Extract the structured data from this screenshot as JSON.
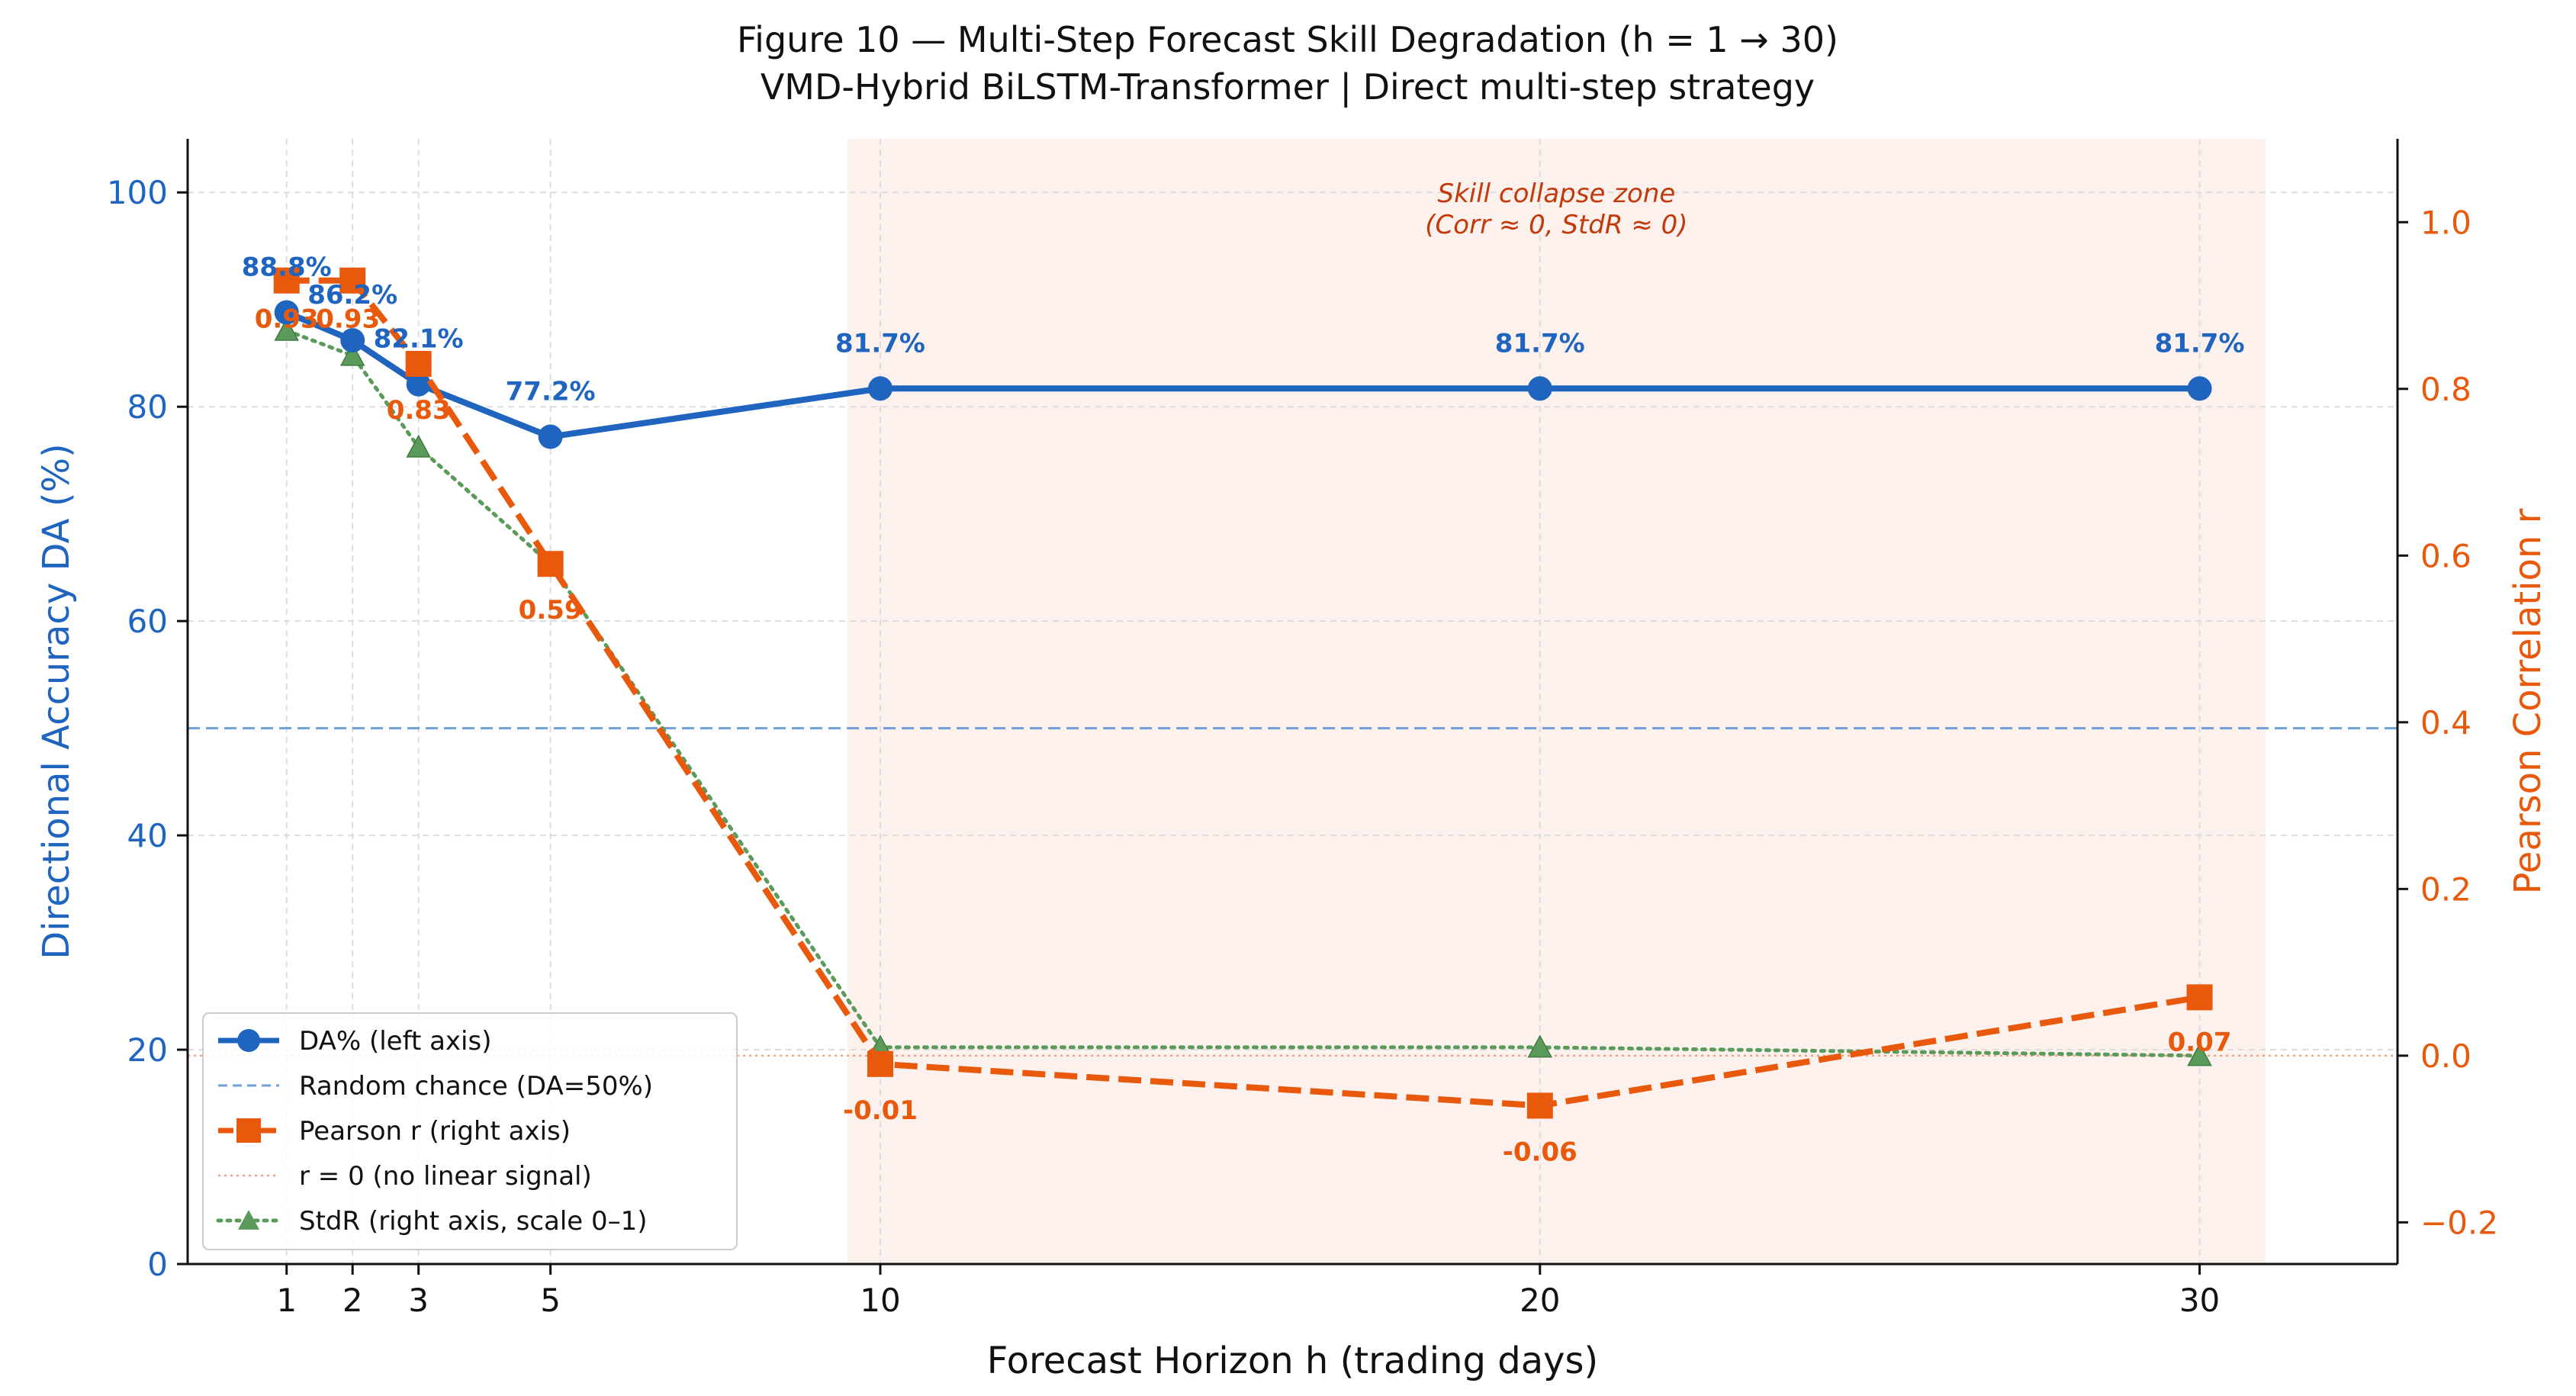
{
  "title": "Figure 10  —  Multi-Step Forecast Skill Degradation  (h = 1 → 30)",
  "subtitle": "VMD-Hybrid BiLSTM-Transformer  |  Direct multi-step strategy",
  "chart_data": {
    "type": "line",
    "title": "Figure 10  —  Multi-Step Forecast Skill Degradation  (h = 1 → 30)",
    "subtitle": "VMD-Hybrid BiLSTM-Transformer  |  Direct multi-step strategy",
    "xlabel": "Forecast Horizon  h  (trading days)",
    "ylabel_left": "Directional Accuracy  DA (%)",
    "ylabel_right": "Pearson Correlation  r",
    "x": [
      1,
      2,
      3,
      5,
      10,
      20,
      30
    ],
    "x_ticks": [
      "1",
      "2",
      "3",
      "5",
      "10",
      "20",
      "30"
    ],
    "xlim": [
      -0.5,
      33.0
    ],
    "ylim_left": [
      0,
      105
    ],
    "ylim_right": [
      -0.25,
      1.1
    ],
    "y_ticks_left": [
      0,
      20,
      40,
      60,
      80,
      100
    ],
    "y_tick_labels_left": [
      "0",
      "20",
      "40",
      "60",
      "80",
      "100"
    ],
    "y_ticks_right": [
      -0.2,
      0.0,
      0.2,
      0.4,
      0.6,
      0.8,
      1.0
    ],
    "y_tick_labels_right": [
      "−0.2",
      "0.0",
      "0.2",
      "0.4",
      "0.6",
      "0.8",
      "1.0"
    ],
    "grid": true,
    "legend_position": "lower-left",
    "colors": {
      "da": "#1f65c0",
      "pearson": "#e8590c",
      "stdr": "#5a9a5a",
      "random_chance": "#6fa0d8",
      "zero_line": "#f0a080",
      "axis_left": "#1f65c0",
      "axis_right": "#e8590c",
      "zone_fill": "#fdf1ee",
      "zone_text": "#c2390a"
    },
    "series": [
      {
        "key": "da",
        "name": "DA%  (left axis)",
        "axis": "left",
        "values": [
          88.8,
          86.2,
          82.1,
          77.2,
          81.7,
          81.7,
          81.7
        ],
        "labels": [
          "88.8%",
          "86.2%",
          "82.1%",
          "77.2%",
          "81.7%",
          "81.7%",
          "81.7%"
        ]
      },
      {
        "key": "pearson",
        "name": "Pearson r  (right axis)",
        "axis": "right",
        "values": [
          0.93,
          0.93,
          0.83,
          0.59,
          -0.01,
          -0.06,
          0.07
        ],
        "labels": [
          "0.93",
          "0.93",
          "0.83",
          "0.59",
          "-0.01",
          "-0.06",
          "0.07"
        ]
      },
      {
        "key": "stdr",
        "name": "StdR  (right axis, scale 0–1)",
        "axis": "right",
        "values": [
          0.87,
          0.84,
          0.73,
          0.59,
          0.01,
          0.01,
          0.0
        ]
      }
    ],
    "reference_lines": [
      {
        "key": "random_chance",
        "name": "Random chance (DA=50%)",
        "axis": "left",
        "value": 50
      },
      {
        "key": "zero_line",
        "name": "r = 0 (no linear signal)",
        "axis": "right",
        "value": 0
      }
    ],
    "shaded_region": {
      "x_range": [
        9.5,
        31.0
      ],
      "label_line1": "Skill collapse zone",
      "label_line2": "(Corr ≈ 0,  StdR ≈ 0)"
    }
  }
}
